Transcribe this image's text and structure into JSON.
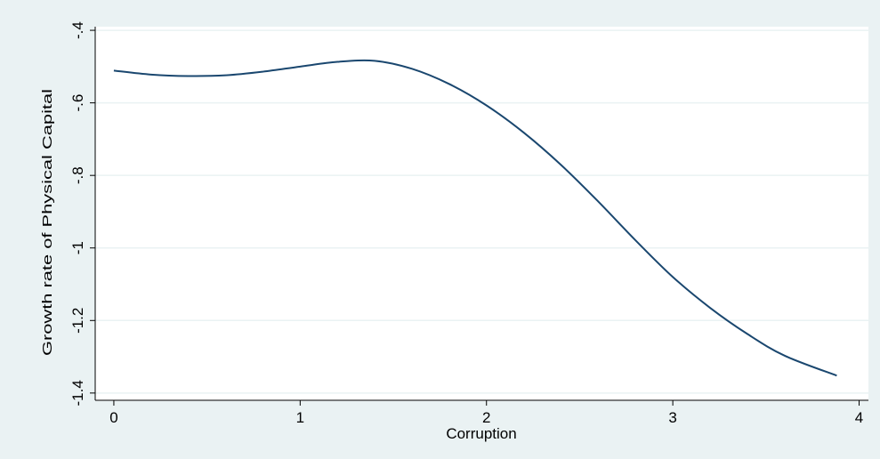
{
  "chart_data": {
    "type": "line",
    "title": "",
    "xlabel": "Corruption",
    "ylabel": "Growth rate of Physical Capital",
    "xlim": [
      -0.1,
      4.05
    ],
    "ylim": [
      -1.42,
      -0.39
    ],
    "xticks": [
      0,
      1,
      2,
      3,
      4
    ],
    "xtick_labels": [
      "0",
      "1",
      "2",
      "3",
      "4"
    ],
    "yticks": [
      -0.4,
      -0.6,
      -0.8,
      -1,
      -1.2,
      -1.4
    ],
    "ytick_labels": [
      "-.4",
      "-.6",
      "-.8",
      "-1",
      "-1.2",
      "-1.4"
    ],
    "grid": true,
    "legend": "none",
    "colors": {
      "background": "#eaf2f3",
      "plot": "#ffffff",
      "line": "#1a476f",
      "grid": "#eaf2f3"
    },
    "series": [
      {
        "x": [
          0,
          0.2,
          0.4,
          0.6,
          0.8,
          1.0,
          1.2,
          1.4,
          1.6,
          1.8,
          2.0,
          2.2,
          2.4,
          2.6,
          2.8,
          3.0,
          3.2,
          3.4,
          3.6,
          3.88
        ],
        "values": [
          -0.511,
          -0.522,
          -0.526,
          -0.524,
          -0.514,
          -0.5,
          -0.487,
          -0.484,
          -0.506,
          -0.548,
          -0.607,
          -0.682,
          -0.771,
          -0.872,
          -0.979,
          -1.08,
          -1.165,
          -1.237,
          -1.297,
          -1.352
        ]
      }
    ]
  }
}
